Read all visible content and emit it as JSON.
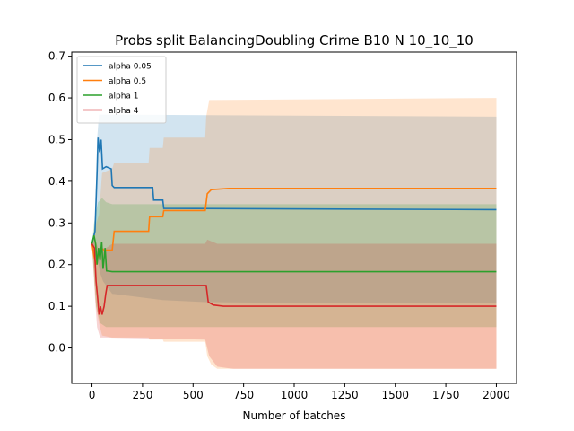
{
  "chart_data": {
    "type": "line",
    "title": "Probs split BalancingDoubling Crime B10 N 10_10_10",
    "xlabel": "Number of batches",
    "ylabel": "",
    "xlim": [
      -100,
      2100
    ],
    "ylim": [
      -0.085,
      0.71
    ],
    "xticks": [
      "0",
      "250",
      "500",
      "750",
      "1000",
      "1250",
      "1500",
      "1750",
      "2000"
    ],
    "yticks": [
      "0.0",
      "0.1",
      "0.2",
      "0.3",
      "0.4",
      "0.5",
      "0.6",
      "0.7"
    ],
    "grid": false,
    "legend_position": "upper-left",
    "series": [
      {
        "name": "alpha 0.05",
        "color": "#1f77b4",
        "mean": [
          [
            0,
            0.25
          ],
          [
            15,
            0.28
          ],
          [
            25,
            0.42
          ],
          [
            30,
            0.505
          ],
          [
            38,
            0.47
          ],
          [
            45,
            0.5
          ],
          [
            52,
            0.43
          ],
          [
            70,
            0.435
          ],
          [
            95,
            0.43
          ],
          [
            100,
            0.39
          ],
          [
            110,
            0.385
          ],
          [
            300,
            0.385
          ],
          [
            305,
            0.355
          ],
          [
            350,
            0.355
          ],
          [
            355,
            0.335
          ],
          [
            2000,
            0.332
          ]
        ],
        "upper": [
          [
            0,
            0.25
          ],
          [
            15,
            0.3
          ],
          [
            25,
            0.5
          ],
          [
            35,
            0.56
          ],
          [
            2000,
            0.555
          ]
        ],
        "lower": [
          [
            0,
            0.25
          ],
          [
            25,
            0.22
          ],
          [
            40,
            0.18
          ],
          [
            55,
            0.16
          ],
          [
            100,
            0.13
          ],
          [
            350,
            0.115
          ],
          [
            560,
            0.11
          ],
          [
            1000,
            0.108
          ],
          [
            2000,
            0.108
          ]
        ]
      },
      {
        "name": "alpha 0.5",
        "color": "#ff7f0e",
        "mean": [
          [
            0,
            0.25
          ],
          [
            10,
            0.22
          ],
          [
            20,
            0.2
          ],
          [
            30,
            0.22
          ],
          [
            45,
            0.24
          ],
          [
            60,
            0.235
          ],
          [
            100,
            0.235
          ],
          [
            110,
            0.28
          ],
          [
            280,
            0.28
          ],
          [
            285,
            0.315
          ],
          [
            350,
            0.315
          ],
          [
            355,
            0.33
          ],
          [
            560,
            0.33
          ],
          [
            570,
            0.37
          ],
          [
            590,
            0.38
          ],
          [
            680,
            0.383
          ],
          [
            2000,
            0.383
          ]
        ],
        "upper": [
          [
            0,
            0.25
          ],
          [
            15,
            0.29
          ],
          [
            35,
            0.32
          ],
          [
            50,
            0.42
          ],
          [
            100,
            0.43
          ],
          [
            110,
            0.445
          ],
          [
            280,
            0.445
          ],
          [
            285,
            0.48
          ],
          [
            350,
            0.48
          ],
          [
            355,
            0.505
          ],
          [
            560,
            0.505
          ],
          [
            565,
            0.555
          ],
          [
            580,
            0.595
          ],
          [
            2000,
            0.6
          ]
        ],
        "lower": [
          [
            0,
            0.25
          ],
          [
            20,
            0.1
          ],
          [
            35,
            0.06
          ],
          [
            50,
            0.03
          ],
          [
            100,
            0.025
          ],
          [
            280,
            0.025
          ],
          [
            285,
            0.02
          ],
          [
            350,
            0.02
          ],
          [
            355,
            0.015
          ],
          [
            560,
            0.015
          ],
          [
            570,
            -0.02
          ],
          [
            590,
            -0.04
          ],
          [
            620,
            -0.05
          ],
          [
            2000,
            -0.05
          ]
        ]
      },
      {
        "name": "alpha 1",
        "color": "#2ca02c",
        "mean": [
          [
            0,
            0.25
          ],
          [
            10,
            0.27
          ],
          [
            18,
            0.25
          ],
          [
            25,
            0.2
          ],
          [
            32,
            0.24
          ],
          [
            40,
            0.21
          ],
          [
            48,
            0.255
          ],
          [
            55,
            0.19
          ],
          [
            65,
            0.24
          ],
          [
            72,
            0.185
          ],
          [
            100,
            0.183
          ],
          [
            2000,
            0.183
          ]
        ],
        "upper": [
          [
            0,
            0.25
          ],
          [
            10,
            0.3
          ],
          [
            30,
            0.35
          ],
          [
            50,
            0.36
          ],
          [
            70,
            0.35
          ],
          [
            100,
            0.345
          ],
          [
            2000,
            0.345
          ]
        ],
        "lower": [
          [
            0,
            0.25
          ],
          [
            20,
            0.1
          ],
          [
            40,
            0.06
          ],
          [
            70,
            0.05
          ],
          [
            100,
            0.05
          ],
          [
            2000,
            0.05
          ]
        ]
      },
      {
        "name": "alpha 4",
        "color": "#d62728",
        "mean": [
          [
            0,
            0.25
          ],
          [
            12,
            0.24
          ],
          [
            20,
            0.16
          ],
          [
            28,
            0.12
          ],
          [
            35,
            0.08
          ],
          [
            42,
            0.1
          ],
          [
            50,
            0.08
          ],
          [
            60,
            0.1
          ],
          [
            68,
            0.13
          ],
          [
            75,
            0.15
          ],
          [
            565,
            0.15
          ],
          [
            575,
            0.11
          ],
          [
            600,
            0.103
          ],
          [
            650,
            0.1
          ],
          [
            2000,
            0.1
          ]
        ],
        "upper": [
          [
            0,
            0.25
          ],
          [
            15,
            0.26
          ],
          [
            30,
            0.24
          ],
          [
            70,
            0.24
          ],
          [
            100,
            0.25
          ],
          [
            560,
            0.25
          ],
          [
            570,
            0.26
          ],
          [
            620,
            0.25
          ],
          [
            2000,
            0.25
          ]
        ],
        "lower": [
          [
            0,
            0.25
          ],
          [
            15,
            0.12
          ],
          [
            25,
            0.05
          ],
          [
            40,
            0.025
          ],
          [
            70,
            0.025
          ],
          [
            560,
            0.02
          ],
          [
            580,
            -0.02
          ],
          [
            620,
            -0.045
          ],
          [
            700,
            -0.05
          ],
          [
            2000,
            -0.05
          ]
        ]
      }
    ]
  }
}
